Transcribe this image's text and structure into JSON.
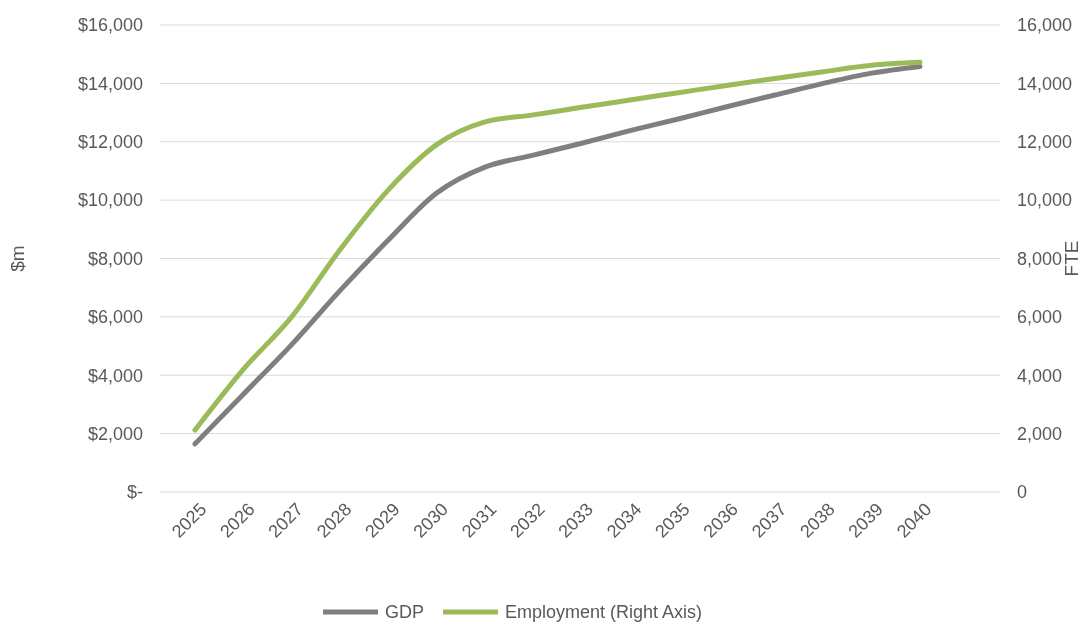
{
  "chart_data": {
    "type": "line",
    "categories": [
      "2025",
      "2026",
      "2027",
      "2028",
      "2029",
      "2030",
      "2031",
      "2032",
      "2033",
      "2034",
      "2035",
      "2036",
      "2037",
      "2038",
      "2039",
      "2040"
    ],
    "series": [
      {
        "name": "GDP",
        "color": "#7f7f7f",
        "values": [
          1650,
          3350,
          5050,
          6900,
          8630,
          10240,
          11130,
          11540,
          11950,
          12380,
          12780,
          13200,
          13600,
          14000,
          14350,
          14580
        ]
      },
      {
        "name": "Employment (Right Axis)",
        "color": "#9bbb59",
        "axis": "y2",
        "values": [
          2120,
          4200,
          6000,
          8300,
          10350,
          11900,
          12680,
          12920,
          13180,
          13430,
          13680,
          13930,
          14170,
          14400,
          14620,
          14720
        ]
      }
    ],
    "ylabel": "$m",
    "y2label": "FTE",
    "ylim": [
      0,
      16000
    ],
    "yticks": [
      {
        "value": 0,
        "label": "$-"
      },
      {
        "value": 2000,
        "label": "$2,000"
      },
      {
        "value": 4000,
        "label": "$4,000"
      },
      {
        "value": 6000,
        "label": "$6,000"
      },
      {
        "value": 8000,
        "label": "$8,000"
      },
      {
        "value": 10000,
        "label": "$10,000"
      },
      {
        "value": 12000,
        "label": "$12,000"
      },
      {
        "value": 14000,
        "label": "$14,000"
      },
      {
        "value": 16000,
        "label": "$16,000"
      }
    ],
    "y2lim": [
      0,
      16000
    ],
    "y2ticks": [
      {
        "value": 0,
        "label": "0"
      },
      {
        "value": 2000,
        "label": "2,000"
      },
      {
        "value": 4000,
        "label": "4,000"
      },
      {
        "value": 6000,
        "label": "6,000"
      },
      {
        "value": 8000,
        "label": "8,000"
      },
      {
        "value": 10000,
        "label": "10,000"
      },
      {
        "value": 12000,
        "label": "12,000"
      },
      {
        "value": 14000,
        "label": "14,000"
      },
      {
        "value": 16000,
        "label": "16,000"
      }
    ],
    "grid": "y",
    "legend": "bottom",
    "line_style": "solid",
    "marker": "none"
  }
}
